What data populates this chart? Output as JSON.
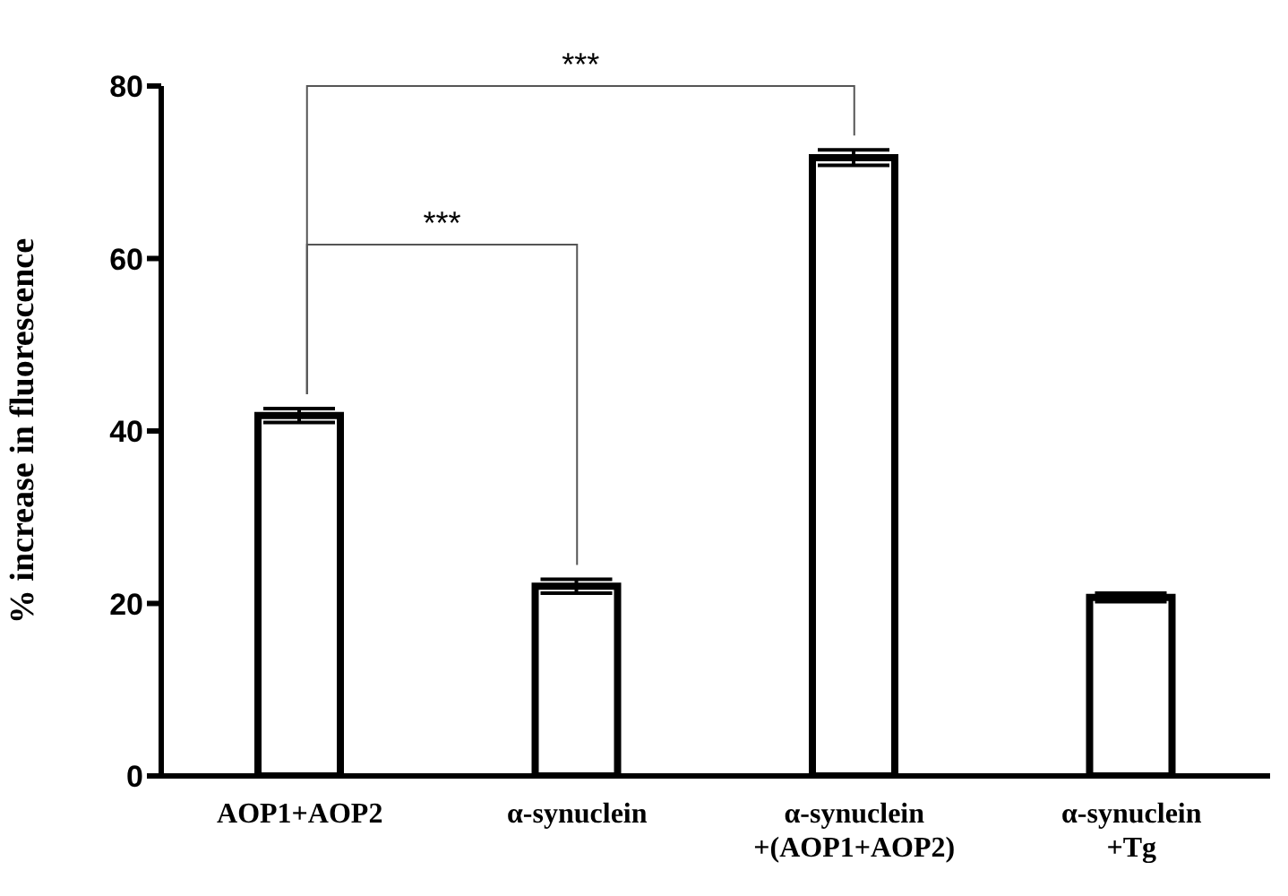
{
  "chart_data": {
    "type": "bar",
    "ylabel": "% increase in fluorescence",
    "categories": [
      "AOP1+AOP2",
      "α-synuclein",
      "α-synuclein\n+(AOP1+AOP2)",
      "α-synuclein\n+Tg"
    ],
    "values": [
      41.8,
      22,
      71.7,
      20.7
    ],
    "errors": [
      0.8,
      0.8,
      0.9,
      0.5
    ],
    "color": "#000000",
    "ylim": [
      0,
      80
    ],
    "yticks": [
      0,
      20,
      40,
      60,
      80
    ],
    "grid": false,
    "annotations": [
      "***",
      "***"
    ]
  }
}
